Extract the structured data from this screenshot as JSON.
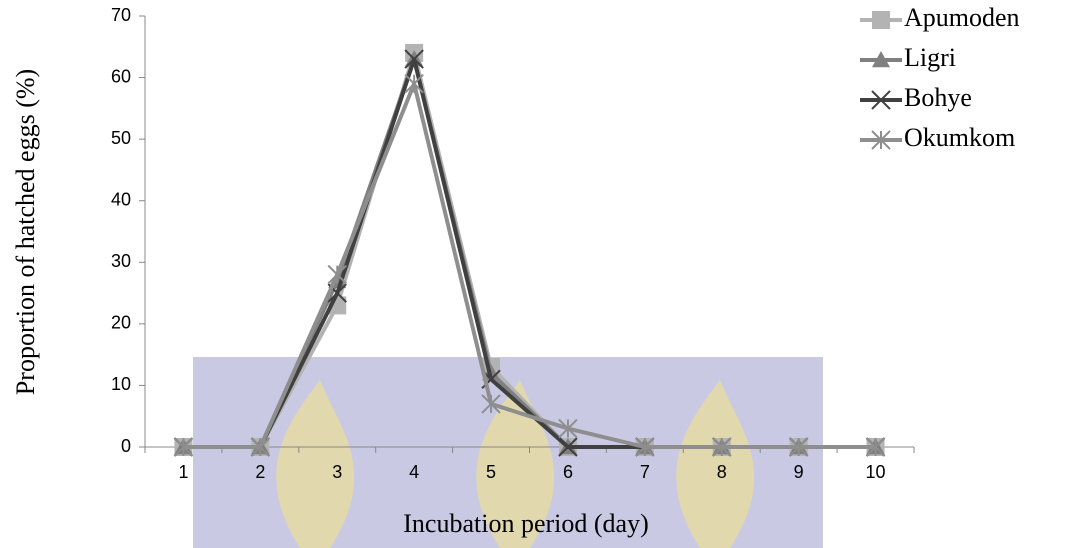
{
  "chart_data": {
    "type": "line",
    "x_label": "Incubation period (day)",
    "y_label": "Proportion of hatched eggs (%)",
    "categories": [
      1,
      2,
      3,
      4,
      5,
      6,
      7,
      8,
      9,
      10
    ],
    "series": [
      {
        "name": "Apumoden",
        "color": "#b3b3b3",
        "marker": "square",
        "values": [
          0,
          0,
          23,
          64,
          13,
          0,
          0,
          0,
          0,
          0
        ]
      },
      {
        "name": "Ligri",
        "color": "#808080",
        "marker": "triangle",
        "values": [
          0,
          0,
          27,
          63,
          12,
          0,
          0,
          0,
          0,
          0
        ]
      },
      {
        "name": "Bohye",
        "color": "#404040",
        "marker": "x",
        "values": [
          0,
          0,
          25,
          63,
          11,
          0,
          0,
          0,
          0,
          0
        ]
      },
      {
        "name": "Okumkom",
        "color": "#8e8e8e",
        "marker": "asterisk",
        "values": [
          0,
          0,
          28,
          59,
          7,
          3,
          0,
          0,
          0,
          0
        ]
      }
    ],
    "ylim": [
      0,
      70
    ],
    "yticks": [
      0,
      10,
      20,
      30,
      40,
      50,
      60,
      70
    ],
    "grid": false,
    "legend": "top-right"
  }
}
